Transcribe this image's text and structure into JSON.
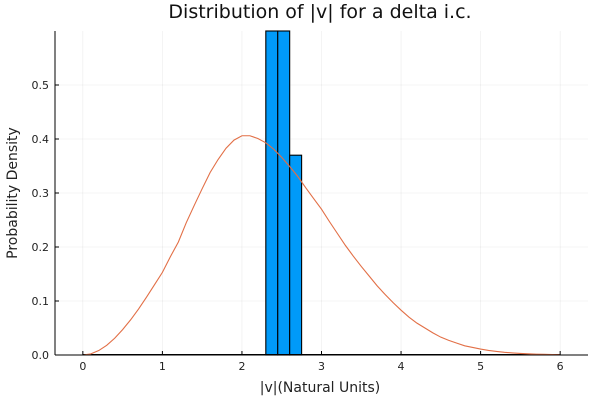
{
  "chart_data": {
    "type": "bar",
    "title": "Distribution of |v| for a delta i.c.",
    "xlabel": "|v|(Natural Units)",
    "ylabel": "Probability Density",
    "xlim": [
      -0.35,
      6.35
    ],
    "ylim": [
      0,
      0.6
    ],
    "xticks": [
      0,
      1,
      2,
      3,
      4,
      5,
      6
    ],
    "yticks": [
      0.0,
      0.1,
      0.2,
      0.3,
      0.4,
      0.5
    ],
    "ytick_labels": [
      "0.0",
      "0.1",
      "0.2",
      "0.3",
      "0.4",
      "0.5"
    ],
    "grid": true,
    "legend": "none",
    "histogram": {
      "color": "#009AF9",
      "bins": [
        {
          "x0": 2.3,
          "x1": 2.45,
          "value": 1.0
        },
        {
          "x0": 2.45,
          "x1": 2.6,
          "value": 1.0
        },
        {
          "x0": 2.6,
          "x1": 2.75,
          "value": 0.37
        }
      ]
    },
    "curve": {
      "type": "line",
      "color": "#E26F46",
      "x": [
        0.0,
        0.1,
        0.2,
        0.3,
        0.4,
        0.5,
        0.6,
        0.7,
        0.8,
        0.9,
        1.0,
        1.1,
        1.2,
        1.3,
        1.4,
        1.5,
        1.6,
        1.7,
        1.8,
        1.9,
        2.0,
        2.1,
        2.2,
        2.3,
        2.4,
        2.5,
        2.6,
        2.7,
        2.8,
        2.9,
        3.0,
        3.1,
        3.2,
        3.3,
        3.4,
        3.5,
        3.6,
        3.7,
        3.8,
        3.9,
        4.0,
        4.1,
        4.2,
        4.3,
        4.4,
        4.5,
        4.6,
        4.7,
        4.8,
        4.9,
        5.0,
        5.1,
        5.2,
        5.3,
        5.4,
        5.5,
        5.6,
        5.7,
        5.8,
        5.9,
        6.0
      ],
      "y": [
        0.0,
        0.0021,
        0.0082,
        0.018,
        0.031,
        0.047,
        0.065,
        0.085,
        0.107,
        0.13,
        0.153,
        0.182,
        0.209,
        0.245,
        0.277,
        0.308,
        0.338,
        0.362,
        0.383,
        0.398,
        0.406,
        0.406,
        0.401,
        0.393,
        0.381,
        0.366,
        0.349,
        0.331,
        0.31,
        0.29,
        0.27,
        0.247,
        0.225,
        0.203,
        0.183,
        0.164,
        0.146,
        0.128,
        0.112,
        0.097,
        0.083,
        0.07,
        0.059,
        0.05,
        0.041,
        0.033,
        0.027,
        0.022,
        0.017,
        0.014,
        0.011,
        0.0085,
        0.0066,
        0.005,
        0.0038,
        0.0029,
        0.0022,
        0.0016,
        0.0012,
        0.0009,
        0.0007
      ]
    }
  }
}
